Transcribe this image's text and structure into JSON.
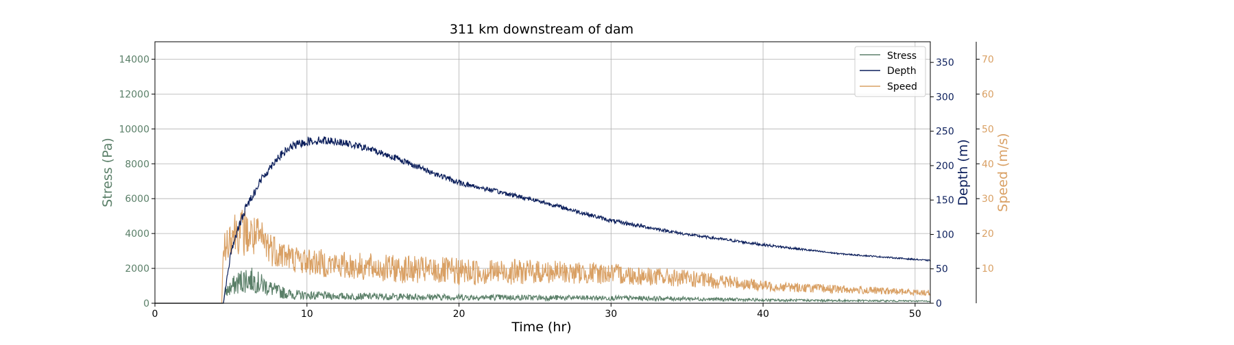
{
  "chart_data": {
    "type": "line",
    "title": "311 km downstream of dam",
    "xlabel": "Time (hr)",
    "xlim": [
      0,
      51
    ],
    "xticks": [
      0,
      10,
      20,
      30,
      40,
      50
    ],
    "grid": true,
    "legend_position": "top-right",
    "axes": {
      "stress": {
        "label": "Stress (Pa)",
        "side": "left",
        "color": "#5a7f68",
        "ylim": [
          0,
          15000
        ],
        "ticks": [
          0,
          2000,
          4000,
          6000,
          8000,
          10000,
          12000,
          14000
        ]
      },
      "depth": {
        "label": "Depth (m)",
        "side": "right",
        "color": "#0b1e5b",
        "ylim": [
          0,
          380
        ],
        "ticks": [
          0,
          50,
          100,
          150,
          200,
          250,
          300,
          350
        ]
      },
      "speed": {
        "label": "Speed (m/s)",
        "side": "right-outer",
        "color": "#d9a064",
        "ylim": [
          0,
          75
        ],
        "ticks": [
          10,
          20,
          30,
          40,
          50,
          60,
          70
        ]
      }
    },
    "series": [
      {
        "name": "Stress",
        "axis": "stress",
        "color": "#5a7f68",
        "x": [
          0,
          4.5,
          4.6,
          5,
          5.5,
          6,
          6.5,
          7,
          8,
          9,
          10,
          12,
          15,
          20,
          25,
          30,
          35,
          40,
          45,
          51
        ],
        "y": [
          0,
          0,
          600,
          900,
          1200,
          1400,
          1300,
          1100,
          700,
          500,
          450,
          400,
          380,
          350,
          320,
          300,
          260,
          180,
          150,
          120
        ],
        "noise": [
          0,
          0,
          300,
          500,
          700,
          800,
          700,
          600,
          400,
          300,
          250,
          200,
          200,
          180,
          160,
          140,
          120,
          80,
          60,
          40
        ]
      },
      {
        "name": "Depth",
        "axis": "depth",
        "color": "#0b1e5b",
        "x": [
          0,
          4.5,
          4.7,
          5,
          5.5,
          6,
          7,
          8,
          9,
          10,
          11,
          12,
          14,
          16,
          18,
          20,
          25,
          30,
          35,
          40,
          45,
          51
        ],
        "y": [
          0,
          0,
          30,
          75,
          110,
          140,
          180,
          210,
          228,
          235,
          237,
          235,
          225,
          210,
          192,
          175,
          150,
          120,
          100,
          85,
          72,
          62
        ],
        "noise": [
          0,
          0,
          3,
          5,
          6,
          6,
          6,
          6,
          6,
          6,
          6,
          5,
          5,
          5,
          4,
          4,
          3,
          3,
          2,
          2,
          1,
          1
        ]
      },
      {
        "name": "Speed",
        "axis": "speed",
        "color": "#d9a064",
        "x": [
          0,
          4.4,
          4.5,
          5,
          5.5,
          6,
          7,
          8,
          9,
          10,
          12,
          15,
          20,
          25,
          30,
          35,
          38,
          40,
          45,
          51
        ],
        "y": [
          0,
          0,
          15,
          20,
          21,
          20,
          18,
          15,
          13,
          12,
          11,
          10,
          9,
          9,
          8.5,
          7,
          6,
          5,
          4,
          3
        ],
        "noise": [
          0,
          0,
          4,
          6,
          7,
          7,
          6,
          5,
          4,
          4,
          4,
          4,
          4,
          3.5,
          3,
          2.5,
          2,
          1.5,
          1.2,
          0.8
        ]
      }
    ]
  }
}
